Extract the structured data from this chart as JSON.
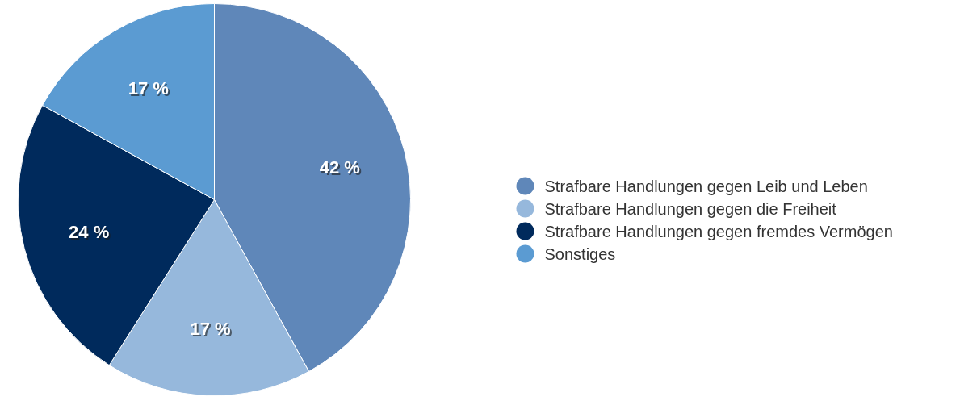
{
  "chart_data": {
    "type": "pie",
    "categories": [
      "Strafbare Handlungen gegen Leib und Leben",
      "Strafbare Handlungen gegen die Freiheit",
      "Strafbare Handlungen gegen fremdes Vermögen",
      "Sonstiges"
    ],
    "values": [
      42,
      17,
      24,
      17
    ],
    "colors": [
      "#5f87b9",
      "#96b8dc",
      "#002a5c",
      "#5b9bd2"
    ],
    "value_labels": [
      "42 %",
      "17 %",
      "24 %",
      "17 %"
    ],
    "legend": "right"
  }
}
